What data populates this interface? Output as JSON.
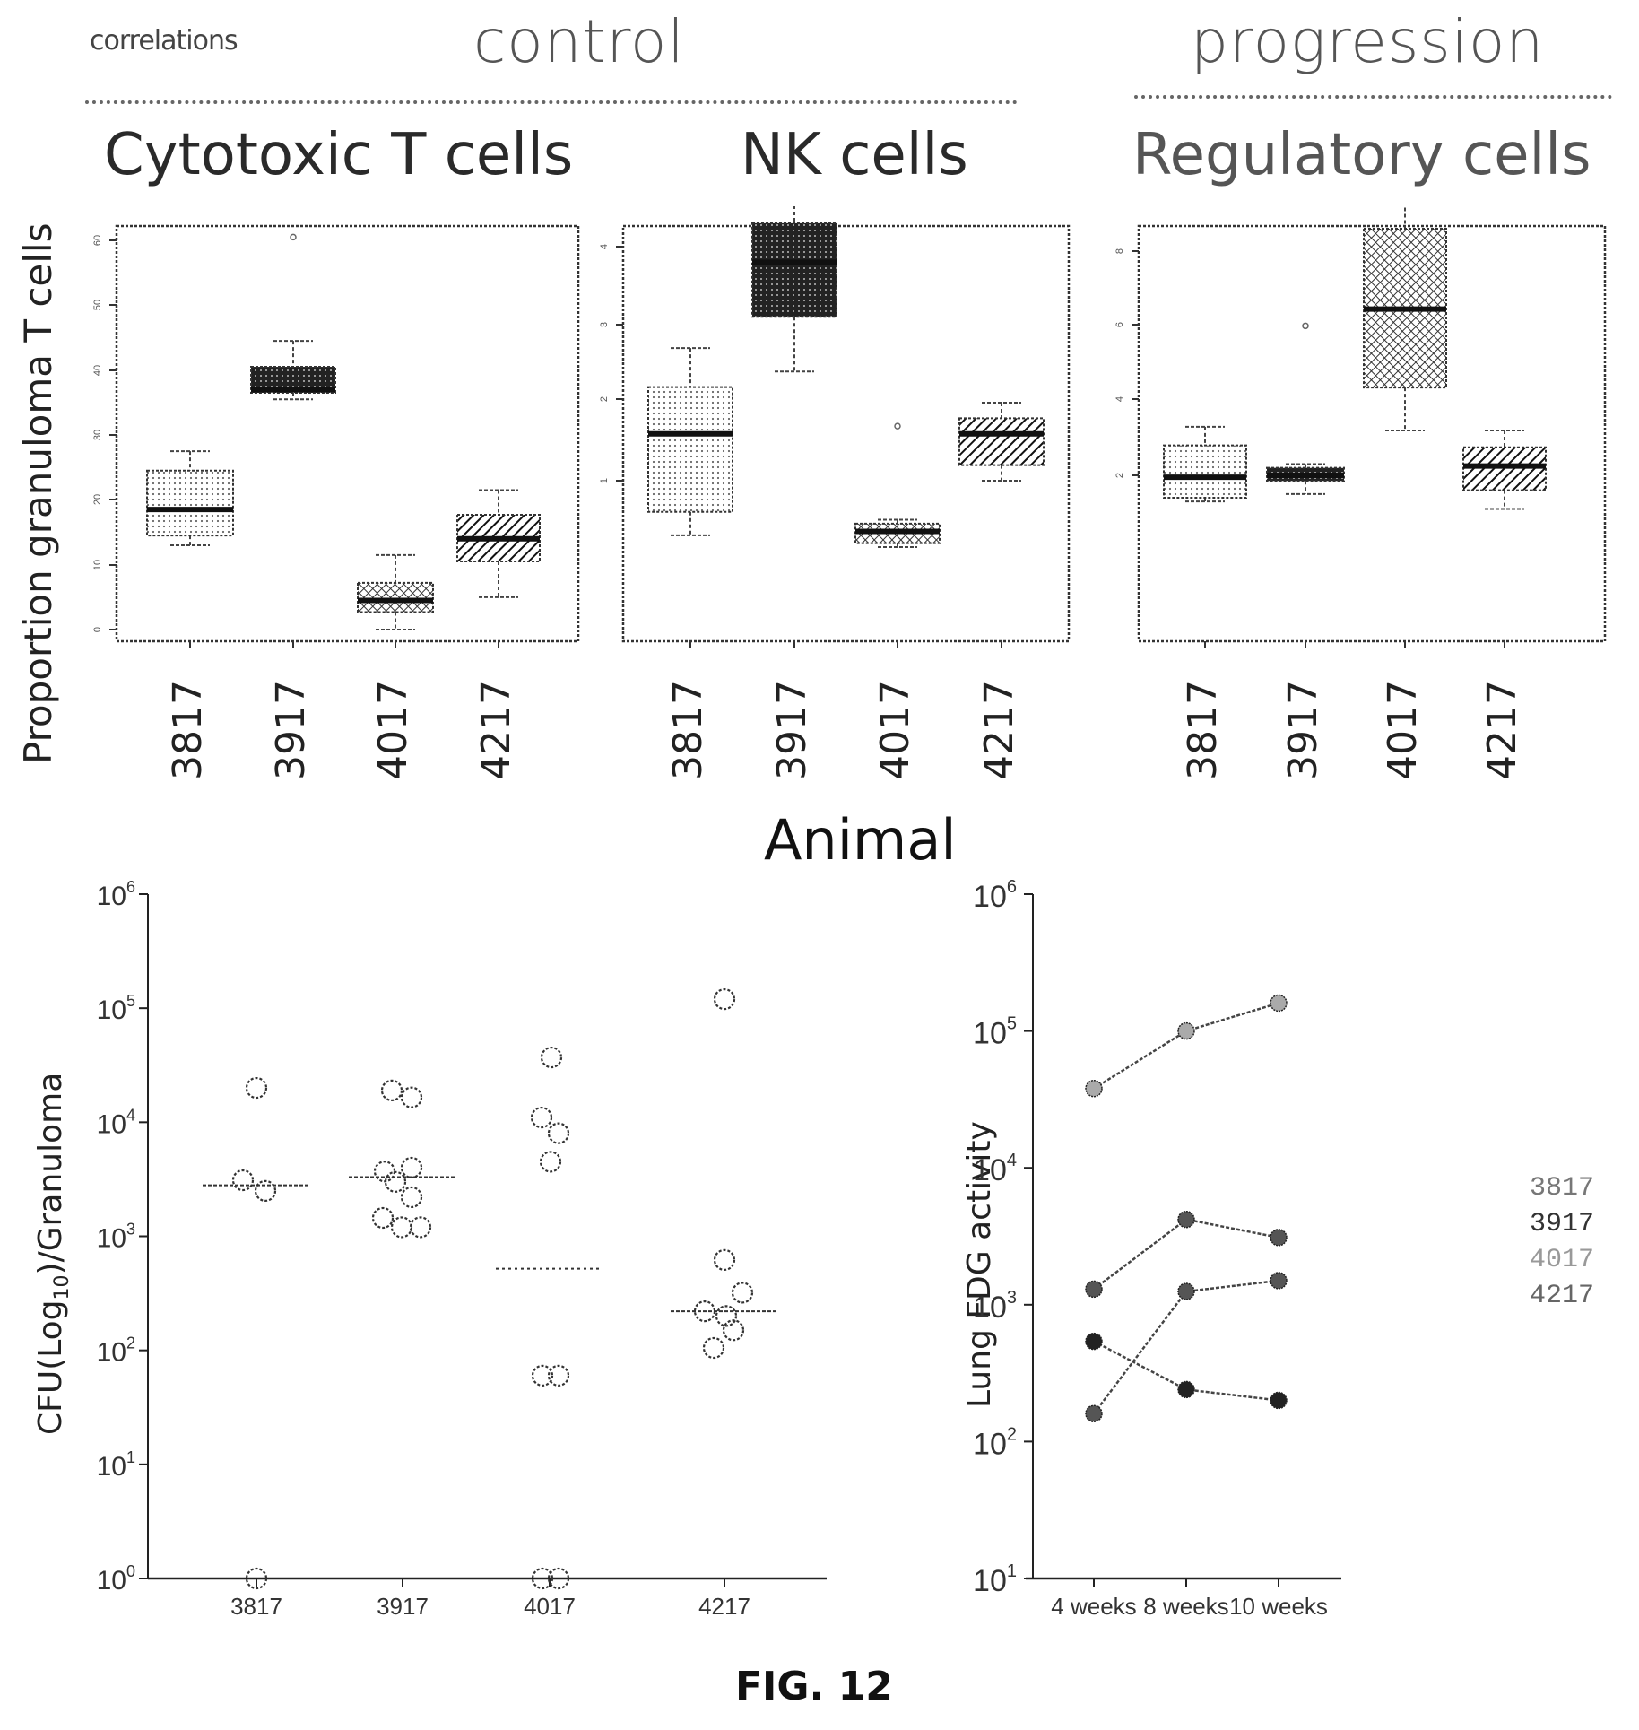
{
  "header": {
    "label_small": "correlations",
    "group_control": "control",
    "group_progression": "progression"
  },
  "shared": {
    "box_ylabel": "Proportion granuloma T cells",
    "box_xlabel": "Animal",
    "figure_label": "FIG. 12"
  },
  "colors": {
    "ink": "#1a1a1a",
    "light_fill": "#d9d9d9",
    "dark_fill": "#3a3a3a",
    "mid_fill": "#9a9a9a",
    "axis": "#222222"
  },
  "chart_data": [
    {
      "type": "box",
      "title": "Cytotoxic T cells",
      "group": "control",
      "xlabel": "Animal",
      "ylabel": "Proportion granuloma T cells",
      "ylim": [
        0,
        60
      ],
      "yticks": [
        0,
        10,
        20,
        30,
        40,
        50,
        60
      ],
      "categories": [
        "3817",
        "3917",
        "4017",
        "4217"
      ],
      "boxes": [
        {
          "category": "3817",
          "whisker_low": 13,
          "q1": 14.5,
          "median": 18.5,
          "q3": 24.5,
          "whisker_high": 27.5,
          "outliers": [],
          "fill": "light"
        },
        {
          "category": "3917",
          "whisker_low": 35.5,
          "q1": 36.5,
          "median": 37,
          "q3": 40.5,
          "whisker_high": 44.5,
          "outliers": [
            60.5
          ],
          "fill": "dark"
        },
        {
          "category": "4017",
          "whisker_low": 0,
          "q1": 2.7,
          "median": 4.5,
          "q3": 7.2,
          "whisker_high": 11.5,
          "outliers": [],
          "fill": "mid"
        },
        {
          "category": "4217",
          "whisker_low": 5,
          "q1": 10.5,
          "median": 14,
          "q3": 17.7,
          "whisker_high": 21.5,
          "outliers": [],
          "fill": "hatch"
        }
      ]
    },
    {
      "type": "box",
      "title": "NK cells",
      "group": "control",
      "xlabel": "Animal",
      "ylabel": "Proportion granuloma T cells",
      "ylim": [
        0,
        4.4
      ],
      "yticks": [
        1,
        2,
        3,
        4
      ],
      "categories": [
        "3817",
        "3917",
        "4017",
        "4217"
      ],
      "boxes": [
        {
          "category": "3817",
          "whisker_low": 0.3,
          "q1": 0.6,
          "median": 1.6,
          "q3": 2.2,
          "whisker_high": 2.7,
          "outliers": [],
          "fill": "light"
        },
        {
          "category": "3917",
          "whisker_low": 2.4,
          "q1": 3.1,
          "median": 3.8,
          "q3": 4.3,
          "whisker_high": 4.85,
          "outliers": [],
          "fill": "dark"
        },
        {
          "category": "4017",
          "whisker_low": 0.15,
          "q1": 0.2,
          "median": 0.35,
          "q3": 0.45,
          "whisker_high": 0.5,
          "outliers": [
            1.7
          ],
          "fill": "mid"
        },
        {
          "category": "4217",
          "whisker_low": 1.0,
          "q1": 1.2,
          "median": 1.6,
          "q3": 1.8,
          "whisker_high": 2.0,
          "outliers": [],
          "fill": "hatch"
        }
      ]
    },
    {
      "type": "box",
      "title": "Regulatory cells",
      "group": "progression",
      "xlabel": "Animal",
      "ylabel": "Proportion granuloma T cells",
      "ylim": [
        0,
        9
      ],
      "yticks": [
        2,
        4,
        6,
        8
      ],
      "categories": [
        "3817",
        "3917",
        "4017",
        "4217"
      ],
      "boxes": [
        {
          "category": "3817",
          "whisker_low": 1.3,
          "q1": 1.4,
          "median": 1.95,
          "q3": 2.8,
          "whisker_high": 3.3,
          "outliers": [],
          "fill": "light"
        },
        {
          "category": "3917",
          "whisker_low": 1.5,
          "q1": 1.85,
          "median": 2.0,
          "q3": 2.2,
          "whisker_high": 2.3,
          "outliers": [
            6.0
          ],
          "fill": "dark"
        },
        {
          "category": "4017",
          "whisker_low": 3.2,
          "q1": 4.35,
          "median": 6.45,
          "q3": 8.6,
          "whisker_high": 9.5,
          "outliers": [],
          "fill": "mid"
        },
        {
          "category": "4217",
          "whisker_low": 1.1,
          "q1": 1.6,
          "median": 2.25,
          "q3": 2.75,
          "whisker_high": 3.2,
          "outliers": [],
          "fill": "hatch"
        }
      ]
    },
    {
      "type": "scatter",
      "title": "",
      "xlabel": "",
      "ylabel": "CFU(Log10)/Granuloma",
      "ylabel_parts": {
        "pre": "CFU(Log",
        "sub": "10",
        "post": ")/Granuloma"
      },
      "yscale": "log",
      "ylim": [
        1,
        1000000
      ],
      "yticks": [
        {
          "base": "10",
          "exp": "0"
        },
        {
          "base": "10",
          "exp": "1"
        },
        {
          "base": "10",
          "exp": "2"
        },
        {
          "base": "10",
          "exp": "3"
        },
        {
          "base": "10",
          "exp": "4"
        },
        {
          "base": "10",
          "exp": "5"
        },
        {
          "base": "10",
          "exp": "6"
        }
      ],
      "categories": [
        "3817",
        "3917",
        "4017",
        "4217"
      ],
      "series": [
        {
          "category": "3817",
          "median": 2800,
          "points": [
            {
              "dx": 0,
              "y": 20000
            },
            {
              "dx": -0.15,
              "y": 3100
            },
            {
              "dx": 0.1,
              "y": 2500
            },
            {
              "dx": 0,
              "y": 1
            }
          ]
        },
        {
          "category": "3917",
          "median": 3300,
          "points": [
            {
              "dx": -0.12,
              "y": 19000
            },
            {
              "dx": 0.1,
              "y": 16500
            },
            {
              "dx": -0.2,
              "y": 3700
            },
            {
              "dx": -0.08,
              "y": 3000
            },
            {
              "dx": 0.1,
              "y": 4000
            },
            {
              "dx": 0.1,
              "y": 2200
            },
            {
              "dx": -0.22,
              "y": 1450
            },
            {
              "dx": -0.01,
              "y": 1200
            },
            {
              "dx": 0.2,
              "y": 1200
            }
          ]
        },
        {
          "category": "4017",
          "median": 520,
          "points": [
            {
              "dx": 0.02,
              "y": 37000
            },
            {
              "dx": -0.09,
              "y": 11000
            },
            {
              "dx": 0.1,
              "y": 8000
            },
            {
              "dx": 0.01,
              "y": 4500
            },
            {
              "dx": -0.08,
              "y": 60
            },
            {
              "dx": 0.1,
              "y": 60
            },
            {
              "dx": -0.08,
              "y": 1
            },
            {
              "dx": 0.1,
              "y": 1
            }
          ]
        },
        {
          "category": "4217",
          "median": 220,
          "points": [
            {
              "dx": 0,
              "y": 120000
            },
            {
              "dx": 0,
              "y": 620
            },
            {
              "dx": 0.2,
              "y": 320
            },
            {
              "dx": -0.22,
              "y": 220
            },
            {
              "dx": 0.02,
              "y": 200
            },
            {
              "dx": 0.1,
              "y": 150
            },
            {
              "dx": -0.12,
              "y": 105
            }
          ]
        }
      ]
    },
    {
      "type": "line",
      "title": "",
      "xlabel": "",
      "ylabel": "Lung FDG activity",
      "yscale": "log",
      "ylim": [
        10,
        1000000
      ],
      "yticks": [
        {
          "base": "10",
          "exp": "1"
        },
        {
          "base": "10",
          "exp": "2"
        },
        {
          "base": "10",
          "exp": "3"
        },
        {
          "base": "10",
          "exp": "4"
        },
        {
          "base": "10",
          "exp": "5"
        },
        {
          "base": "10",
          "exp": "6"
        }
      ],
      "x": [
        "4 weeks",
        "8 weeks",
        "10 weeks"
      ],
      "legend_position": "right",
      "series": [
        {
          "name": "3817",
          "values": [
            38000,
            100000,
            160000
          ],
          "marker": "light-hatch",
          "legend_color": "#777777"
        },
        {
          "name": "3917",
          "values": [
            1300,
            4200,
            3100
          ],
          "marker": "hatch",
          "legend_color": "#333333"
        },
        {
          "name": "4017",
          "values": [
            160,
            1250,
            1500
          ],
          "marker": "hatch",
          "legend_color": "#999999"
        },
        {
          "name": "4217",
          "values": [
            540,
            240,
            200
          ],
          "marker": "checker",
          "legend_color": "#666666"
        }
      ]
    }
  ]
}
